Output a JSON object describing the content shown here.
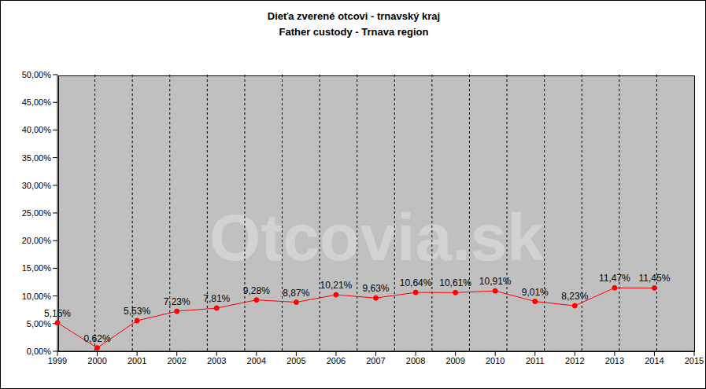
{
  "chart_data": {
    "type": "line",
    "title": "Dieťa zverené otcovi - trnavský kraj",
    "subtitle": "Father custody - Trnava region",
    "annotation": "Otcovia.sk",
    "categories": [
      "1999",
      "2000",
      "2001",
      "2002",
      "2003",
      "2004",
      "2005",
      "2006",
      "2007",
      "2008",
      "2009",
      "2010",
      "2011",
      "2012",
      "2013",
      "2014",
      "2015"
    ],
    "values": [
      5.15,
      0.62,
      5.53,
      7.23,
      7.81,
      9.28,
      8.87,
      10.21,
      9.63,
      10.64,
      10.61,
      10.91,
      9.01,
      8.23,
      11.47,
      11.45,
      null
    ],
    "value_labels": [
      "5,15%",
      "0,62%",
      "5,53%",
      "7,23%",
      "7,81%",
      "9,28%",
      "8,87%",
      "10,21%",
      "9,63%",
      "10,64%",
      "10,61%",
      "10,91%",
      "9,01%",
      "8,23%",
      "11,47%",
      "11,45%",
      null
    ],
    "color": "#ff0000",
    "marker": "circle",
    "ylim": [
      0,
      50
    ],
    "yticks": [
      {
        "value": 0,
        "label": "0,00%"
      },
      {
        "value": 5,
        "label": "5,00%"
      },
      {
        "value": 10,
        "label": "10,00%"
      },
      {
        "value": 15,
        "label": "15,00%"
      },
      {
        "value": 20,
        "label": "20,00%"
      },
      {
        "value": 25,
        "label": "25,00%"
      },
      {
        "value": 30,
        "label": "30,00%"
      },
      {
        "value": 35,
        "label": "35,00%"
      },
      {
        "value": 40,
        "label": "40,00%"
      },
      {
        "value": 45,
        "label": "45,00%"
      },
      {
        "value": 50,
        "label": "50,00%"
      }
    ],
    "grid": true,
    "data_labels": true
  }
}
